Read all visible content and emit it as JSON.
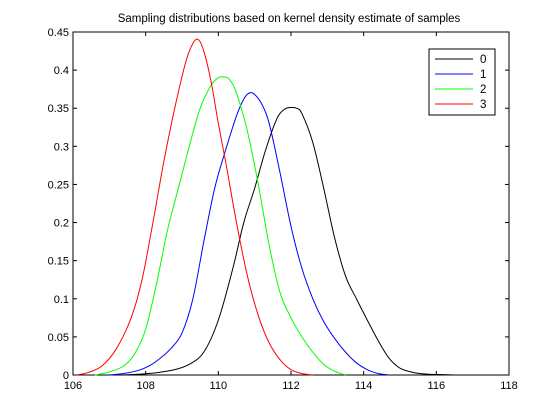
{
  "chart_data": {
    "type": "line",
    "title": "Sampling distributions based on kernel density estimate of samples",
    "xlabel": "",
    "ylabel": "",
    "xlim": [
      106,
      118
    ],
    "ylim": [
      0,
      0.45
    ],
    "xticks": [
      106,
      108,
      110,
      112,
      114,
      116,
      118
    ],
    "yticks": [
      0,
      0.05,
      0.1,
      0.15,
      0.2,
      0.25,
      0.3,
      0.35,
      0.4,
      0.45
    ],
    "xtick_labels": [
      "106",
      "108",
      "110",
      "112",
      "114",
      "116",
      "118"
    ],
    "ytick_labels": [
      "0",
      "0.05",
      "0.1",
      "0.15",
      "0.2",
      "0.25",
      "0.3",
      "0.35",
      "0.4",
      "0.45"
    ],
    "grid": false,
    "legend_position": "top-right",
    "series": [
      {
        "name": "0",
        "color": "#000000",
        "x": [
          107.3,
          107.8,
          108.3,
          108.8,
          109.2,
          109.6,
          110.0,
          110.4,
          110.7,
          111.0,
          111.3,
          111.6,
          111.8,
          112.0,
          112.15,
          112.3,
          112.6,
          112.9,
          113.2,
          113.5,
          113.8,
          114.1,
          114.4,
          114.7,
          115.0,
          115.4,
          115.8,
          116.2,
          116.5
        ],
        "y": [
          0.0,
          0.001,
          0.003,
          0.007,
          0.014,
          0.03,
          0.072,
          0.14,
          0.2,
          0.245,
          0.295,
          0.335,
          0.348,
          0.351,
          0.35,
          0.343,
          0.305,
          0.245,
          0.18,
          0.13,
          0.1,
          0.072,
          0.045,
          0.022,
          0.009,
          0.003,
          0.001,
          0.0005,
          0.0
        ]
      },
      {
        "name": "1",
        "color": "#0000ff",
        "x": [
          107.0,
          107.4,
          107.8,
          108.1,
          108.4,
          108.7,
          109.0,
          109.3,
          109.6,
          109.9,
          110.2,
          110.5,
          110.7,
          110.85,
          111.0,
          111.2,
          111.4,
          111.7,
          112.0,
          112.3,
          112.6,
          112.9,
          113.2,
          113.5,
          113.8,
          114.1,
          114.4,
          114.7
        ],
        "y": [
          0.0,
          0.002,
          0.006,
          0.012,
          0.022,
          0.035,
          0.055,
          0.1,
          0.175,
          0.245,
          0.295,
          0.34,
          0.362,
          0.37,
          0.368,
          0.355,
          0.33,
          0.265,
          0.195,
          0.14,
          0.1,
          0.07,
          0.048,
          0.03,
          0.016,
          0.007,
          0.002,
          0.0
        ]
      },
      {
        "name": "2",
        "color": "#00ff00",
        "x": [
          106.6,
          107.0,
          107.4,
          107.7,
          108.0,
          108.3,
          108.6,
          108.9,
          109.2,
          109.5,
          109.8,
          110.0,
          110.15,
          110.3,
          110.5,
          110.8,
          111.1,
          111.4,
          111.7,
          112.0,
          112.3,
          112.6,
          112.9,
          113.2,
          113.5
        ],
        "y": [
          0.0,
          0.004,
          0.012,
          0.028,
          0.06,
          0.12,
          0.19,
          0.245,
          0.3,
          0.35,
          0.38,
          0.39,
          0.391,
          0.388,
          0.37,
          0.32,
          0.25,
          0.17,
          0.108,
          0.075,
          0.05,
          0.03,
          0.014,
          0.005,
          0.0
        ]
      },
      {
        "name": "3",
        "color": "#ff0000",
        "x": [
          106.1,
          106.4,
          106.8,
          107.2,
          107.6,
          107.9,
          108.2,
          108.5,
          108.8,
          109.1,
          109.3,
          109.45,
          109.6,
          109.8,
          110.0,
          110.2,
          110.5,
          110.8,
          111.1,
          111.4,
          111.7,
          112.0,
          112.3,
          112.6
        ],
        "y": [
          0.0,
          0.003,
          0.012,
          0.035,
          0.075,
          0.125,
          0.2,
          0.28,
          0.35,
          0.41,
          0.435,
          0.44,
          0.425,
          0.385,
          0.33,
          0.28,
          0.2,
          0.13,
          0.078,
          0.042,
          0.02,
          0.007,
          0.002,
          0.0
        ]
      }
    ]
  }
}
